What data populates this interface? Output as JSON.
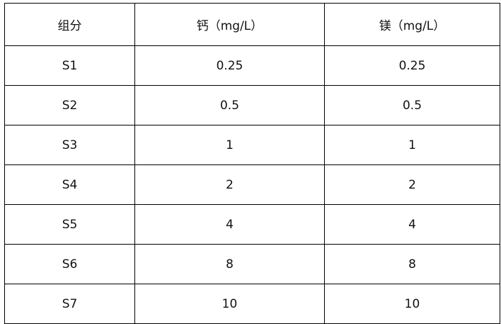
{
  "table": {
    "header": [
      "组分",
      "钙（mg/L）",
      "镁（mg/L）"
    ],
    "rows": [
      [
        "S1",
        "0.25",
        "0.25"
      ],
      [
        "S2",
        "0.5",
        "0.5"
      ],
      [
        "S3",
        "1",
        "1"
      ],
      [
        "S4",
        "2",
        "2"
      ],
      [
        "S5",
        "4",
        "4"
      ],
      [
        "S6",
        "8",
        "8"
      ],
      [
        "S7",
        "10",
        "10"
      ]
    ]
  }
}
